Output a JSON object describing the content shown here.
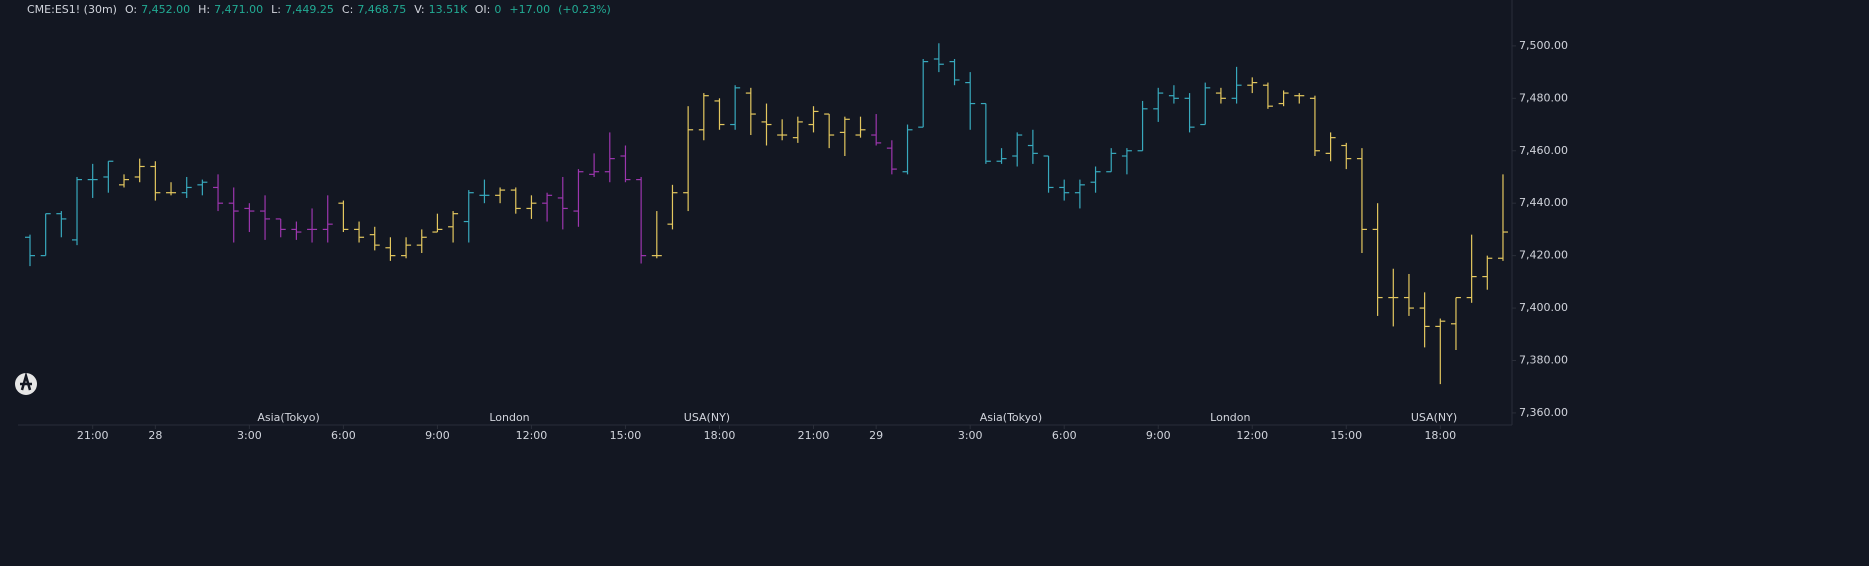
{
  "header": {
    "symbol": "CME:ES1! (30m)",
    "fields": [
      {
        "label": "O:",
        "value": "7,452.00"
      },
      {
        "label": "H:",
        "value": "7,471.00"
      },
      {
        "label": "L:",
        "value": "7,449.25"
      },
      {
        "label": "C:",
        "value": "7,468.75"
      },
      {
        "label": "V:",
        "value": "13.51K"
      },
      {
        "label": "OI:",
        "value": "0"
      }
    ],
    "change": "+17.00",
    "change_pct": "(+0.23%)"
  },
  "chart_data": {
    "type": "ohlc",
    "categories": [
      null,
      null,
      null,
      null,
      null,
      null,
      null,
      null,
      null,
      null,
      null,
      null,
      null,
      null,
      null,
      null,
      null,
      null,
      null,
      null,
      null,
      null,
      null,
      null,
      null,
      null,
      null,
      null,
      null,
      null,
      null,
      null,
      null,
      null,
      null,
      null,
      null,
      null,
      null,
      null,
      null,
      null,
      null,
      null,
      null,
      null,
      null,
      null,
      null,
      null,
      null,
      null,
      null,
      null,
      null,
      null,
      null,
      null,
      null,
      null,
      null,
      null,
      null,
      null,
      null,
      null,
      null,
      null,
      null,
      null,
      null,
      null,
      null,
      null,
      null,
      null,
      null,
      null,
      null,
      null,
      null,
      null,
      null,
      null,
      null,
      null,
      null,
      null,
      null,
      null,
      null,
      null,
      null,
      null,
      null
    ],
    "open": [
      7427,
      7420,
      7436,
      7426,
      7449,
      7450,
      7447,
      7450,
      7454,
      7444,
      7444,
      7447,
      7446,
      7440,
      7438,
      7437,
      7434,
      7430,
      7430,
      7430,
      7440,
      7430,
      7428,
      7423,
      7420,
      7424,
      7429,
      7431,
      7433,
      7443,
      7443,
      7445,
      7438,
      7440,
      7442,
      7437,
      7451,
      7452,
      7458,
      7449,
      7420,
      7432,
      7444,
      7468,
      7479,
      7470,
      7482,
      7471,
      7466,
      7465,
      7470,
      7474,
      7467,
      7466,
      7466,
      7461,
      7452,
      7469,
      7495,
      7494,
      7486,
      7478,
      7456,
      7458,
      7462,
      7458,
      7446,
      7444,
      7448,
      7452,
      7458,
      7460,
      7476,
      7481,
      7480,
      7470,
      7482,
      7480,
      7485,
      7485,
      7478,
      7481,
      7480,
      7459,
      7462,
      7457,
      7430,
      7404,
      7404,
      7400,
      7393,
      7394,
      7404,
      7412,
      7419
    ],
    "high": [
      7428,
      7436,
      7437,
      7450,
      7455,
      7456,
      7451,
      7457,
      7456,
      7448,
      7450,
      7449,
      7451,
      7446,
      7440,
      7443,
      7434,
      7433,
      7438,
      7443,
      7441,
      7433,
      7431,
      7427,
      7427,
      7430,
      7436,
      7437,
      7445,
      7449,
      7446,
      7446,
      7443,
      7444,
      7450,
      7453,
      7459,
      7467,
      7462,
      7450,
      7437,
      7447,
      7477,
      7482,
      7480,
      7485,
      7484,
      7478,
      7472,
      7473,
      7477,
      7474,
      7473,
      7473,
      7474,
      7464,
      7470,
      7495,
      7501,
      7495,
      7490,
      7478,
      7461,
      7467,
      7468,
      7458,
      7449,
      7449,
      7454,
      7461,
      7461,
      7479,
      7484,
      7485,
      7482,
      7486,
      7484,
      7492,
      7488,
      7486,
      7483,
      7482,
      7481,
      7467,
      7463,
      7461,
      7440,
      7415,
      7413,
      7406,
      7396,
      7404,
      7428,
      7420,
      7451
    ],
    "low": [
      7416,
      7420,
      7427,
      7424,
      7442,
      7444,
      7446,
      7448,
      7441,
      7443,
      7442,
      7443,
      7437,
      7425,
      7429,
      7426,
      7427,
      7426,
      7425,
      7425,
      7429,
      7425,
      7422,
      7418,
      7419,
      7421,
      7429,
      7425,
      7425,
      7440,
      7440,
      7436,
      7434,
      7433,
      7430,
      7431,
      7450,
      7448,
      7448,
      7417,
      7419,
      7430,
      7437,
      7464,
      7468,
      7468,
      7466,
      7462,
      7464,
      7463,
      7467,
      7461,
      7458,
      7465,
      7462,
      7451,
      7451,
      7469,
      7490,
      7485,
      7468,
      7455,
      7455,
      7454,
      7455,
      7444,
      7441,
      7438,
      7444,
      7452,
      7451,
      7460,
      7471,
      7478,
      7467,
      7470,
      7478,
      7478,
      7482,
      7476,
      7477,
      7478,
      7458,
      7456,
      7453,
      7421,
      7397,
      7393,
      7397,
      7385,
      7371,
      7384,
      7402,
      7407,
      7418
    ],
    "close": [
      7420,
      7436,
      7434,
      7449,
      7449,
      7456,
      7449,
      7454,
      7444,
      7444,
      7446,
      7448,
      7440,
      7437,
      7437,
      7434,
      7430,
      7429,
      7430,
      7432,
      7430,
      7427,
      7424,
      7420,
      7424,
      7427,
      7430,
      7436,
      7444,
      7443,
      7445,
      7438,
      7440,
      7443,
      7438,
      7452,
      7452,
      7457,
      7449,
      7420,
      7420,
      7444,
      7468,
      7481,
      7470,
      7484,
      7474,
      7470,
      7466,
      7471,
      7475,
      7466,
      7472,
      7468,
      7463,
      7453,
      7468,
      7494,
      7493,
      7487,
      7478,
      7456,
      7457,
      7466,
      7459,
      7446,
      7444,
      7447,
      7452,
      7459,
      7460,
      7476,
      7482,
      7480,
      7469,
      7484,
      7480,
      7485,
      7486,
      7477,
      7482,
      7481,
      7460,
      7465,
      7457,
      7430,
      7404,
      7404,
      7400,
      7393,
      7395,
      7404,
      7412,
      7419,
      7429
    ],
    "bar_colors": "ccccccyyyyccppppppppyyyyyyyyccyyypppppppyyyyycyyyyyyyyppccccccccccccccccccccycyyyyyyyyyyyyyyyyy",
    "palette": {
      "c": "#38a9bd",
      "y": "#e3c75f",
      "p": "#9c36ae"
    },
    "ylim": [
      7355.4,
      7517.5
    ],
    "yticks": [
      {
        "value": 7360,
        "label": "7,360.00"
      },
      {
        "value": 7380,
        "label": "7,380.00"
      },
      {
        "value": 7400,
        "label": "7,400.00"
      },
      {
        "value": 7420,
        "label": "7,420.00"
      },
      {
        "value": 7440,
        "label": "7,440.00"
      },
      {
        "value": 7460,
        "label": "7,460.00"
      },
      {
        "value": 7480,
        "label": "7,480.00"
      },
      {
        "value": 7500,
        "label": "7,500.00"
      }
    ],
    "xticks": [
      {
        "value": 4,
        "label": "21:00"
      },
      {
        "value": 8,
        "label": "28"
      },
      {
        "value": 14,
        "label": "3:00"
      },
      {
        "value": 20,
        "label": "6:00"
      },
      {
        "value": 26,
        "label": "9:00"
      },
      {
        "value": 32,
        "label": "12:00"
      },
      {
        "value": 38,
        "label": "15:00"
      },
      {
        "value": 44,
        "label": "18:00"
      },
      {
        "value": 50,
        "label": "21:00"
      },
      {
        "value": 54,
        "label": "29"
      },
      {
        "value": 60,
        "label": "3:00"
      },
      {
        "value": 66,
        "label": "6:00"
      },
      {
        "value": 72,
        "label": "9:00"
      },
      {
        "value": 78,
        "label": "12:00"
      },
      {
        "value": 84,
        "label": "15:00"
      },
      {
        "value": 90,
        "label": "18:00"
      }
    ],
    "sessions": [
      {
        "text": "Asia(Tokyo)",
        "x": 16.5
      },
      {
        "text": "London",
        "x": 30.6
      },
      {
        "text": "USA(NY)",
        "x": 43.2
      },
      {
        "text": "Asia(Tokyo)",
        "x": 62.6
      },
      {
        "text": "London",
        "x": 76.6
      },
      {
        "text": "USA(NY)",
        "x": 89.6
      }
    ],
    "header_colors": {
      "label": "#d1d4dc",
      "value": "#22ab94"
    }
  }
}
